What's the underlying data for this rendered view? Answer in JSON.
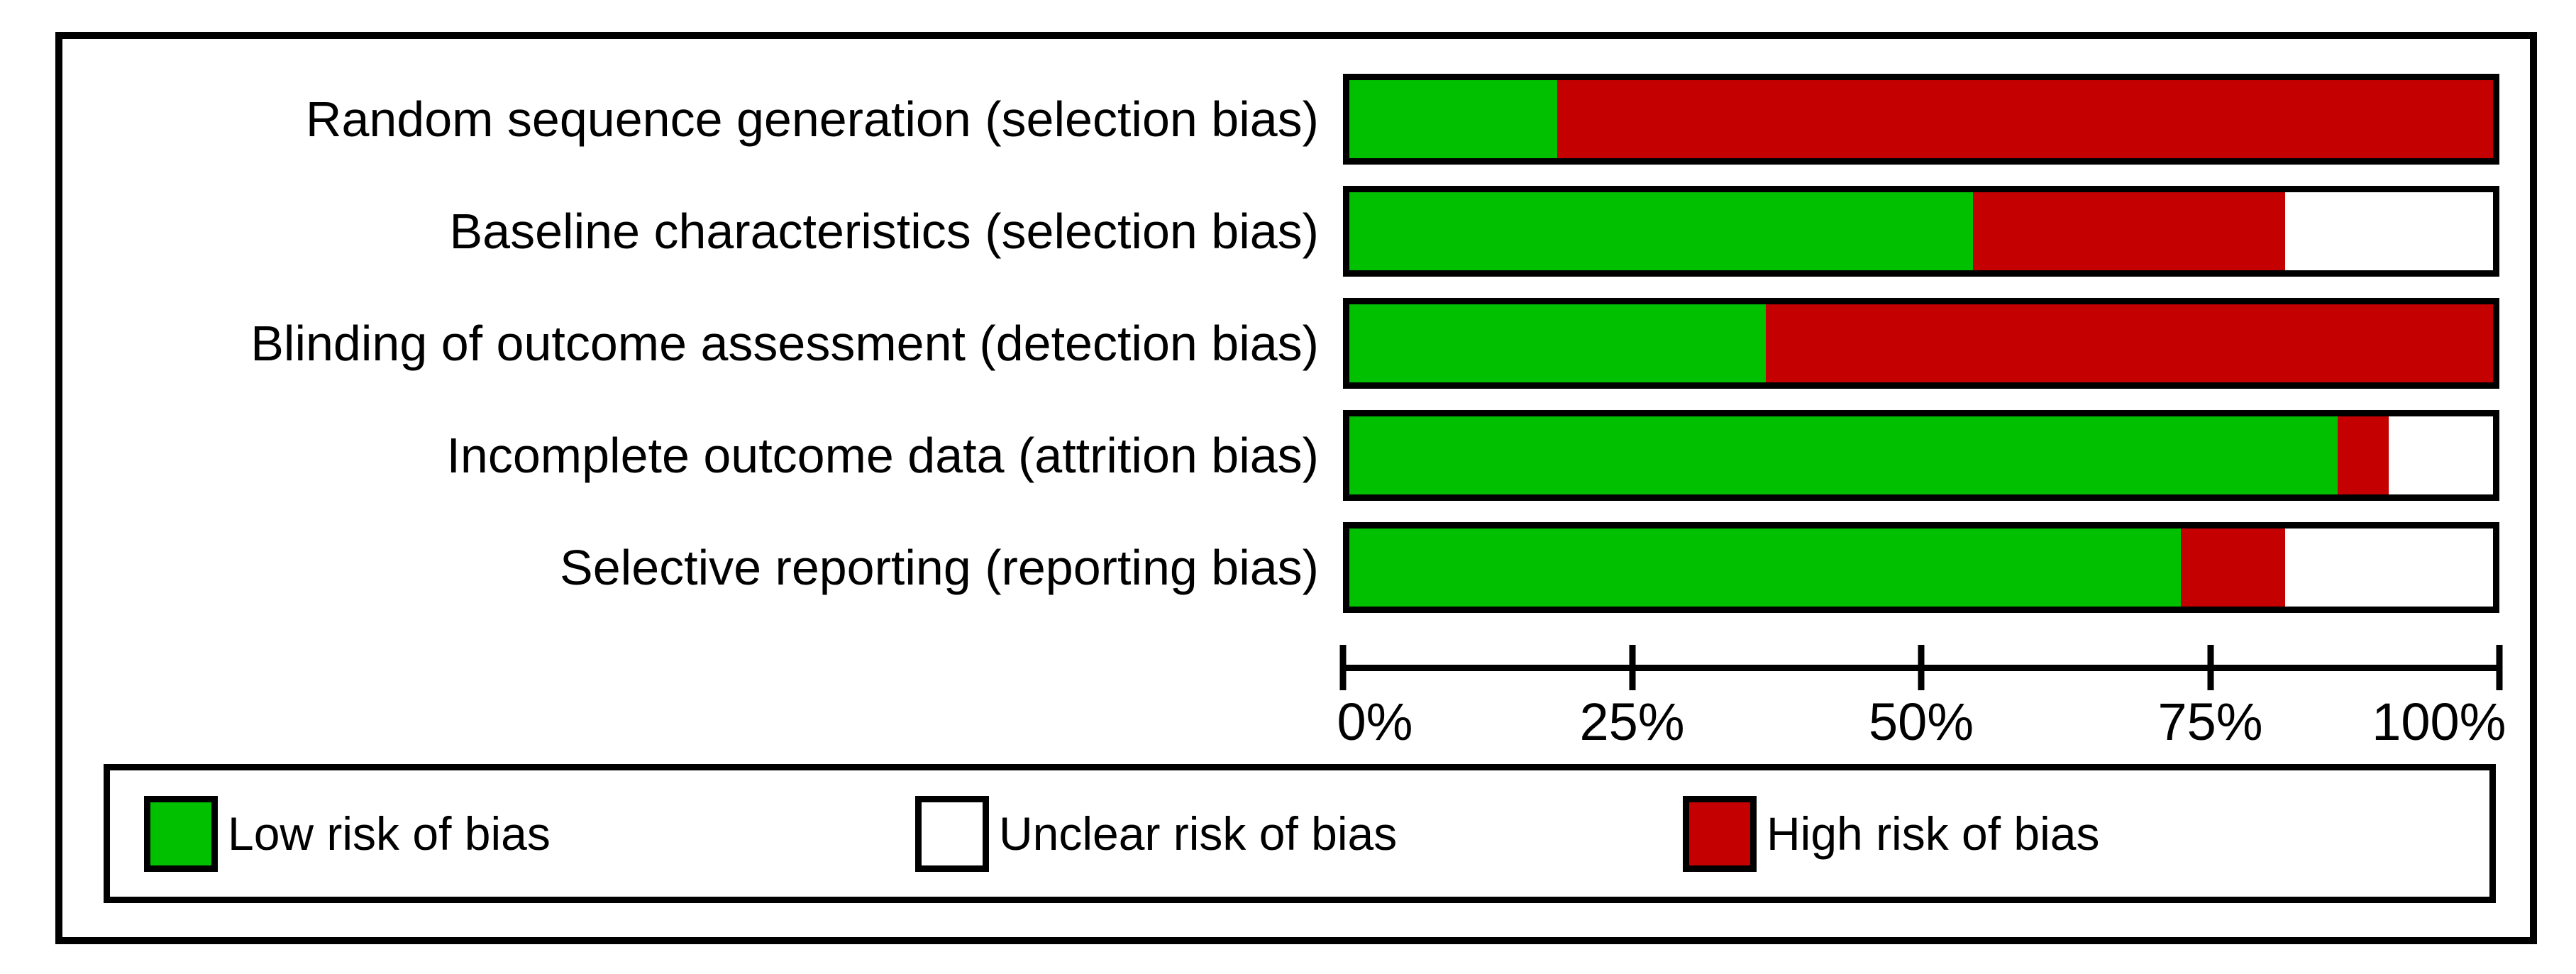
{
  "chart_data": {
    "type": "bar",
    "stacked": true,
    "orientation": "horizontal",
    "title": "",
    "xlabel": "",
    "ylabel": "",
    "xlim": [
      0,
      100
    ],
    "grid": false,
    "legend_position": "bottom",
    "categories": [
      "Random sequence generation (selection bias)",
      "Baseline characteristics (selection bias)",
      "Blinding of outcome assessment (detection bias)",
      "Incomplete outcome data (attrition bias)",
      "Selective reporting (reporting bias)"
    ],
    "series": [
      {
        "name": "Low risk of bias",
        "color": "#00C000",
        "values": [
          18.2,
          54.5,
          36.4,
          86.4,
          72.7
        ]
      },
      {
        "name": "High risk of bias",
        "color": "#C40000",
        "values": [
          81.8,
          27.3,
          63.6,
          4.5,
          9.1
        ]
      },
      {
        "name": "Unclear risk of bias",
        "color": "#FFFFFF",
        "values": [
          0,
          18.2,
          0,
          9.1,
          18.2
        ]
      }
    ],
    "x_tick_labels": [
      "0%",
      "25%",
      "50%",
      "75%",
      "100%"
    ]
  },
  "legend": {
    "items": [
      {
        "label": "Low risk of bias",
        "color": "#00C000"
      },
      {
        "label": "Unclear risk of bias",
        "color": "#FFFFFF"
      },
      {
        "label": "High risk of bias",
        "color": "#C40000"
      }
    ]
  },
  "colors": {
    "frame_border": "#000000",
    "background": "#FFFFFF",
    "axis": "#000000"
  }
}
